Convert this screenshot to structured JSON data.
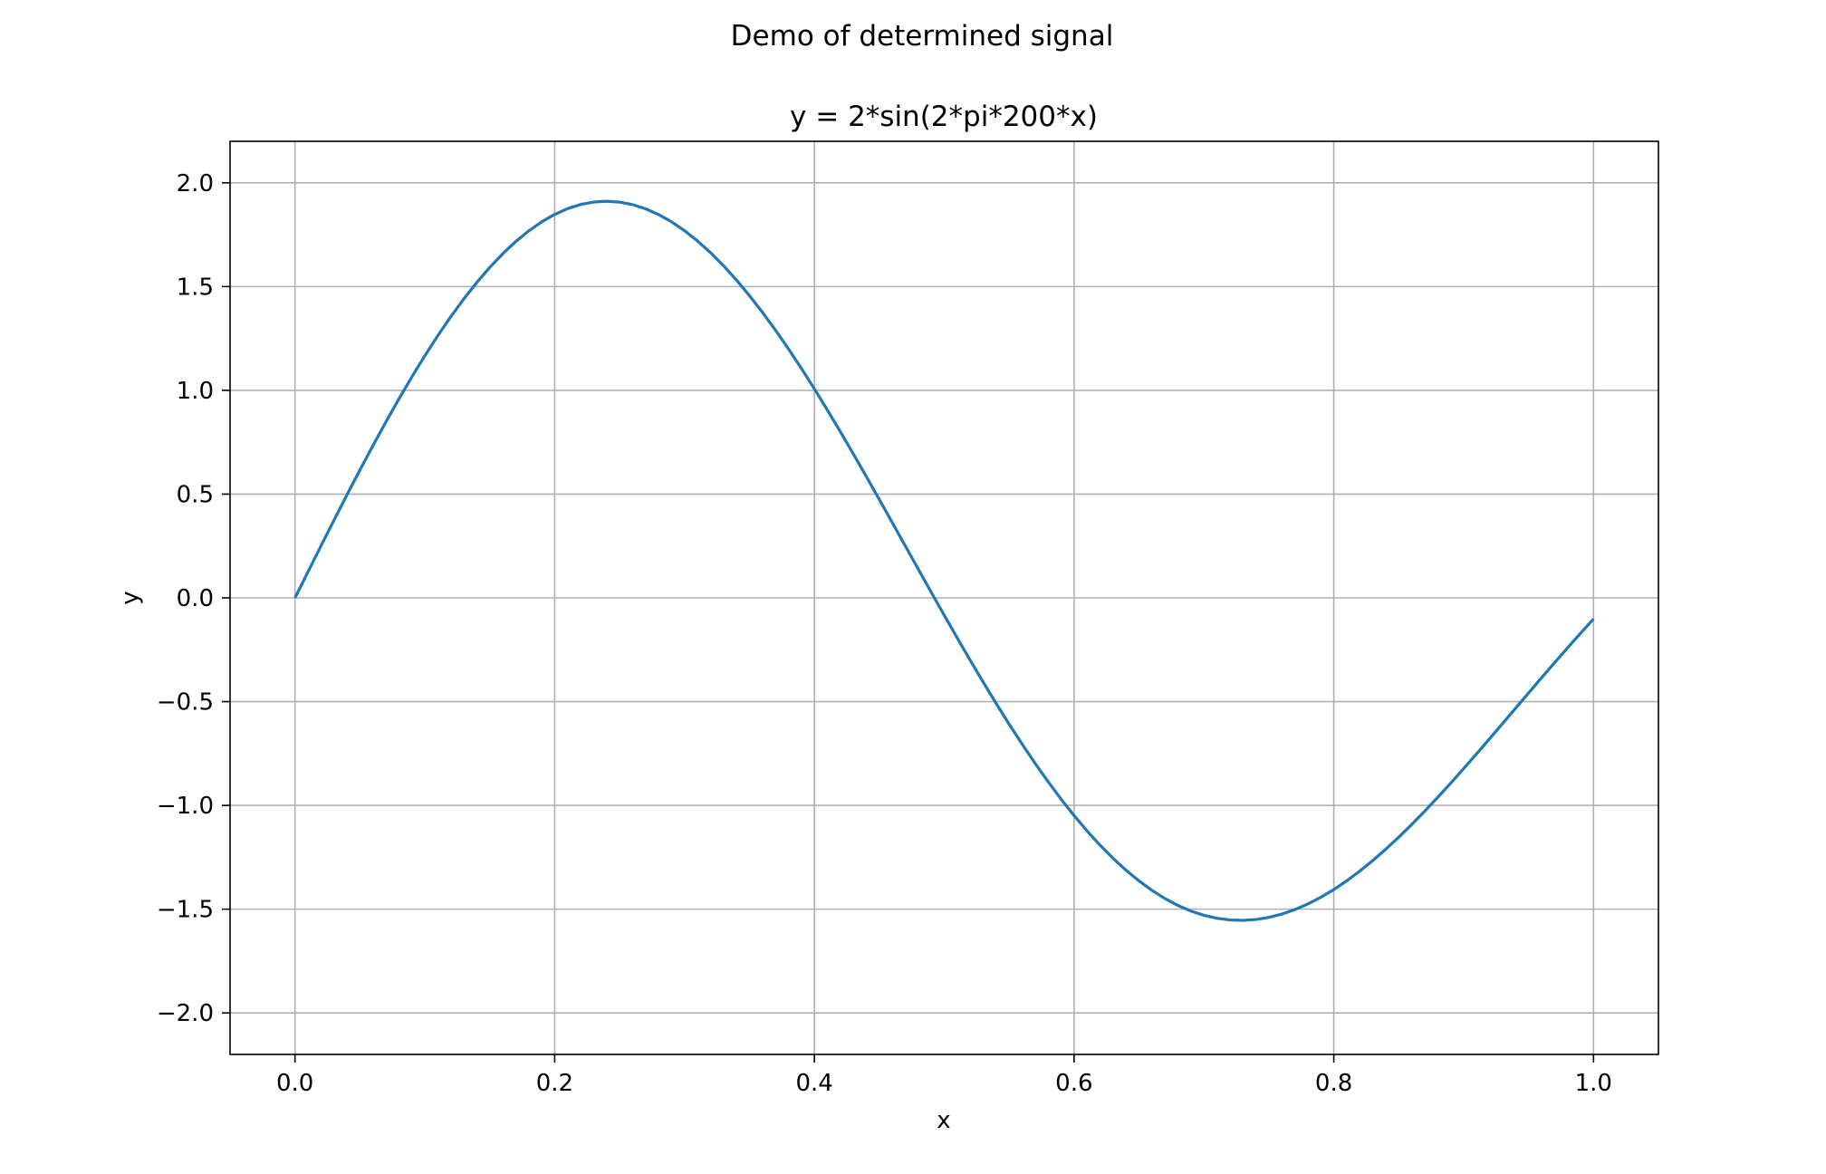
{
  "figure": {
    "suptitle": "Demo of determined signal"
  },
  "chart_data": {
    "type": "line",
    "title": "y = 2*sin(2*pi*200*x)",
    "xlabel": "x",
    "ylabel": "y",
    "xlim": [
      -0.05,
      1.05
    ],
    "ylim": [
      -2.2,
      2.2
    ],
    "grid": true,
    "xticks": [
      0.0,
      0.2,
      0.4,
      0.6,
      0.8,
      1.0
    ],
    "xtick_labels": [
      "0.0",
      "0.2",
      "0.4",
      "0.6",
      "0.8",
      "1.0"
    ],
    "yticks": [
      -2.0,
      -1.5,
      -1.0,
      -0.5,
      0.0,
      0.5,
      1.0,
      1.5,
      2.0
    ],
    "ytick_labels": [
      "−2.0",
      "−1.5",
      "−1.0",
      "−0.5",
      "0.0",
      "0.5",
      "1.0",
      "1.5",
      "2.0"
    ],
    "series": [
      {
        "color": "#1f77b4",
        "x": [
          0.0,
          0.01,
          0.02,
          0.03,
          0.04,
          0.05,
          0.06,
          0.07,
          0.08,
          0.09,
          0.1,
          0.11,
          0.12,
          0.13,
          0.14,
          0.15,
          0.16,
          0.17,
          0.18,
          0.19,
          0.2,
          0.21,
          0.22,
          0.23,
          0.24,
          0.25,
          0.26,
          0.27,
          0.28,
          0.29,
          0.3,
          0.31,
          0.32,
          0.33,
          0.34,
          0.35,
          0.36,
          0.37,
          0.38,
          0.39,
          0.4,
          0.41,
          0.42,
          0.43,
          0.44,
          0.45,
          0.46,
          0.47,
          0.48,
          0.49,
          0.5,
          0.51,
          0.52,
          0.53,
          0.54,
          0.55,
          0.56,
          0.57,
          0.58,
          0.59,
          0.6,
          0.61,
          0.62,
          0.63,
          0.64,
          0.65,
          0.66,
          0.67,
          0.68,
          0.69,
          0.7,
          0.71,
          0.72,
          0.73,
          0.74,
          0.75,
          0.76,
          0.77,
          0.78,
          0.79,
          0.8,
          0.81,
          0.82,
          0.83,
          0.84,
          0.85,
          0.86,
          0.87,
          0.88,
          0.89,
          0.9,
          0.91,
          0.92,
          0.93,
          0.94,
          0.95,
          0.96,
          0.97,
          0.98,
          0.99,
          1.0
        ],
        "y": [
          0.0,
          0.1253,
          0.2501,
          0.3738,
          0.496,
          0.616,
          0.7334,
          0.8477,
          0.9583,
          1.0648,
          1.1667,
          1.2636,
          1.355,
          1.4405,
          1.5198,
          1.5925,
          1.6583,
          1.717,
          1.7683,
          1.8119,
          1.8478,
          1.8757,
          1.8957,
          1.9075,
          1.9113,
          1.9071,
          1.8949,
          1.8749,
          1.8472,
          1.812,
          1.7694,
          1.7198,
          1.6634,
          1.6005,
          1.5314,
          1.4564,
          1.3759,
          1.2903,
          1.2,
          1.1054,
          1.007,
          0.9052,
          0.8006,
          0.6935,
          0.5844,
          0.4739,
          0.3624,
          0.2504,
          0.1383,
          0.0267,
          -0.0839,
          -0.1932,
          -0.3008,
          -0.4062,
          -0.509,
          -0.6088,
          -0.7051,
          -0.7976,
          -0.886,
          -0.9699,
          -1.049,
          -1.123,
          -1.1918,
          -1.255,
          -1.3125,
          -1.364,
          -1.4096,
          -1.449,
          -1.4822,
          -1.5091,
          -1.5297,
          -1.544,
          -1.5521,
          -1.554,
          -1.5498,
          -1.5397,
          -1.5237,
          -1.5021,
          -1.475,
          -1.4426,
          -1.4053,
          -1.3632,
          -1.3166,
          -1.2659,
          -1.2113,
          -1.1532,
          -1.092,
          -1.028,
          -0.9615,
          -0.893,
          -0.8227,
          -0.7511,
          -0.6785,
          -0.6053,
          -0.5317,
          -0.4582,
          -0.385,
          -0.3125,
          -0.2409,
          -0.1705,
          -0.1016
        ]
      }
    ]
  }
}
